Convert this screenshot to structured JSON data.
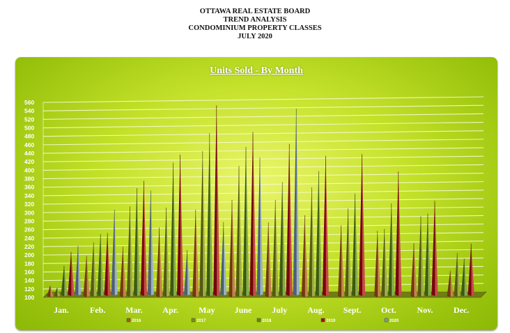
{
  "header": {
    "line1": "OTTAWA REAL ESTATE BOARD",
    "line2": "TREND ANALYSIS",
    "line3": "CONDOMINIUM PROPERTY CLASSES",
    "line4": "JULY 2020"
  },
  "colors": {
    "panel": "#b5d61e",
    "2016": "#b05a10",
    "2017": "#7f8f10",
    "2018": "#5e8e12",
    "2019": "#b40d0d",
    "2020": "#7a96b4"
  },
  "chart_data": {
    "type": "bar",
    "style": "3d-cone",
    "title": "Units Sold - By Month",
    "xlabel": "",
    "ylabel": "",
    "ylim": [
      100,
      560
    ],
    "ytick_step": 20,
    "grid": true,
    "legend": "bottom",
    "categories": [
      "Jan.",
      "Feb.",
      "Mar.",
      "Apr.",
      "May",
      "June",
      "July",
      "Aug.",
      "Sept.",
      "Oct.",
      "Nov.",
      "Dec."
    ],
    "series": [
      {
        "name": "2016",
        "values": [
          128,
          198,
          220,
          265,
          307,
          330,
          277,
          294,
          270,
          257,
          228,
          163
        ]
      },
      {
        "name": "2017",
        "values": [
          123,
          230,
          315,
          312,
          445,
          410,
          330,
          360,
          310,
          262,
          292,
          205
        ]
      },
      {
        "name": "2018",
        "values": [
          175,
          250,
          358,
          418,
          487,
          455,
          372,
          398,
          345,
          322,
          298,
          192
        ]
      },
      {
        "name": "2019",
        "values": [
          207,
          252,
          375,
          437,
          553,
          490,
          462,
          434,
          438,
          397,
          328,
          227
        ]
      },
      {
        "name": "2020",
        "values": [
          222,
          307,
          352,
          212,
          278,
          430,
          545,
          null,
          null,
          null,
          null,
          null
        ]
      }
    ]
  }
}
